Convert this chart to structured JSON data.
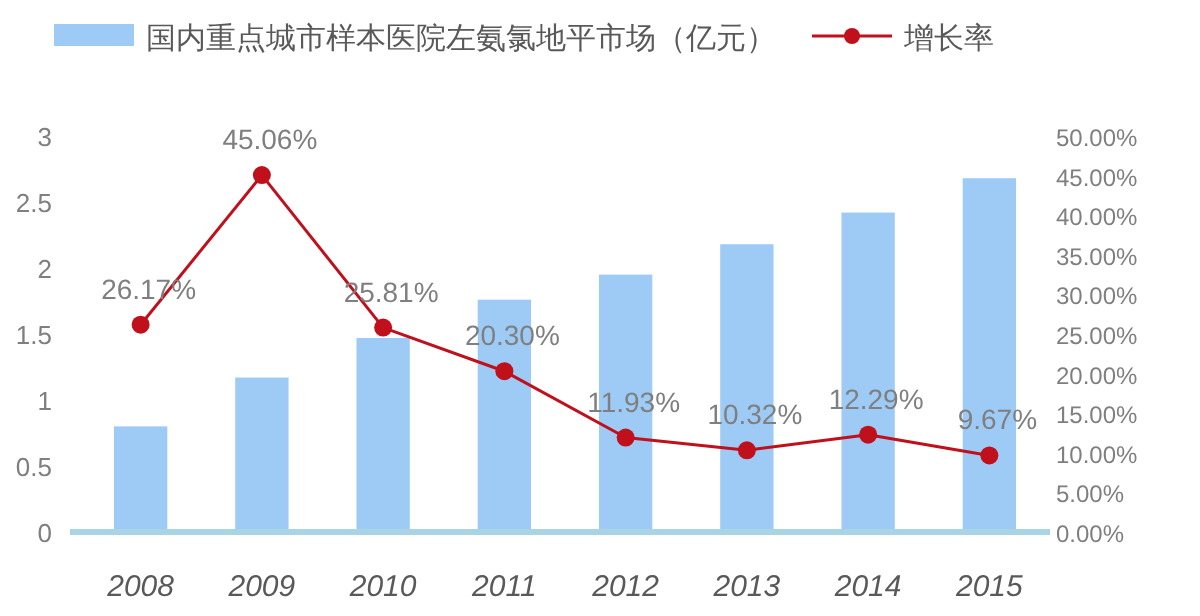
{
  "chart_data": {
    "type": "bar",
    "categories": [
      "2008",
      "2009",
      "2010",
      "2011",
      "2012",
      "2013",
      "2014",
      "2015"
    ],
    "series": [
      {
        "name": "国内重点城市样本医院左氨氯地平市场（亿元）",
        "color": "#9dcbf5",
        "values": [
          0.8,
          1.17,
          1.47,
          1.76,
          1.95,
          2.18,
          2.42,
          2.68
        ]
      },
      {
        "name": "增长率",
        "type": "line",
        "axis": "y2",
        "color": "#c0101b",
        "marker": "circle",
        "values": [
          26.17,
          45.06,
          25.81,
          20.3,
          11.93,
          10.32,
          12.29,
          9.67
        ],
        "value_labels": [
          "26.17%",
          "45.06%",
          "25.81%",
          "20.30%",
          "11.93%",
          "10.32%",
          "12.29%",
          "9.67%"
        ]
      }
    ],
    "ylim": [
      0,
      3
    ],
    "yticks": [
      0,
      0.5,
      1,
      1.5,
      2,
      2.5,
      3
    ],
    "y2lim": [
      0,
      50
    ],
    "y2ticks": [
      {
        "value": 0,
        "label": "0.00%"
      },
      {
        "value": 5,
        "label": "5.00%"
      },
      {
        "value": 10,
        "label": "10.00%"
      },
      {
        "value": 15,
        "label": "15.00%"
      },
      {
        "value": 20,
        "label": "20.00%"
      },
      {
        "value": 25,
        "label": "25.00%"
      },
      {
        "value": 30,
        "label": "30.00%"
      },
      {
        "value": 35,
        "label": "35.00%"
      },
      {
        "value": 40,
        "label": "40.00%"
      },
      {
        "value": 45,
        "label": "45.00%"
      },
      {
        "value": 50,
        "label": "50.00%"
      }
    ],
    "legend": "top"
  }
}
